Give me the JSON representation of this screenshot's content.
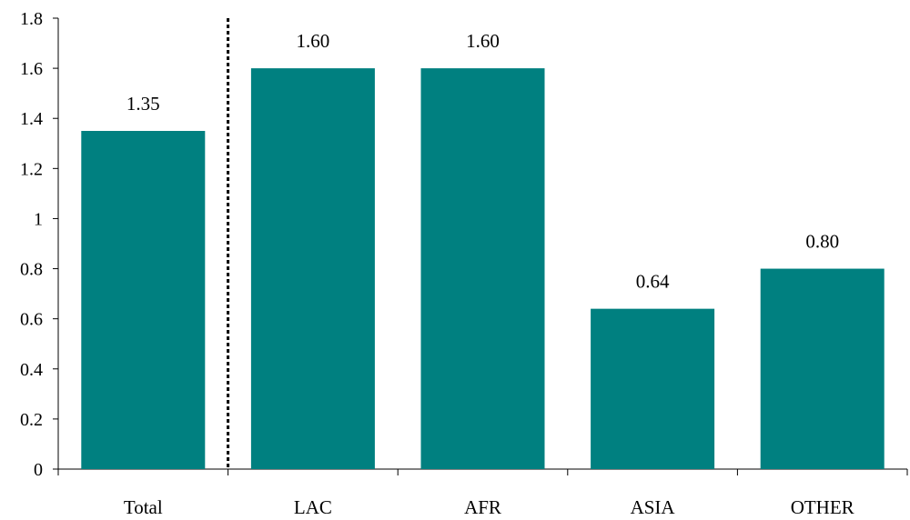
{
  "chart_data": {
    "type": "bar",
    "title": "",
    "xlabel": "",
    "ylabel": "",
    "categories": [
      "Total",
      "LAC",
      "AFR",
      "ASIA",
      "OTHER"
    ],
    "values": [
      1.35,
      1.6,
      1.6,
      0.64,
      0.8
    ],
    "data_labels": [
      "1.35",
      "1.60",
      "1.60",
      "0.64",
      "0.80"
    ],
    "ylim": [
      0,
      1.8
    ],
    "yticks": [
      0,
      0.2,
      0.4,
      0.6,
      0.8,
      1,
      1.2,
      1.4,
      1.6,
      1.8
    ],
    "ytick_labels": [
      "0",
      "0.2",
      "0.4",
      "0.6",
      "0.8",
      "1",
      "1.2",
      "1.4",
      "1.6",
      "1.8"
    ],
    "grid": false,
    "legend": "none",
    "bar_color": "#008080",
    "separator": {
      "type": "dotted-vertical-line",
      "after_category": "Total"
    }
  }
}
